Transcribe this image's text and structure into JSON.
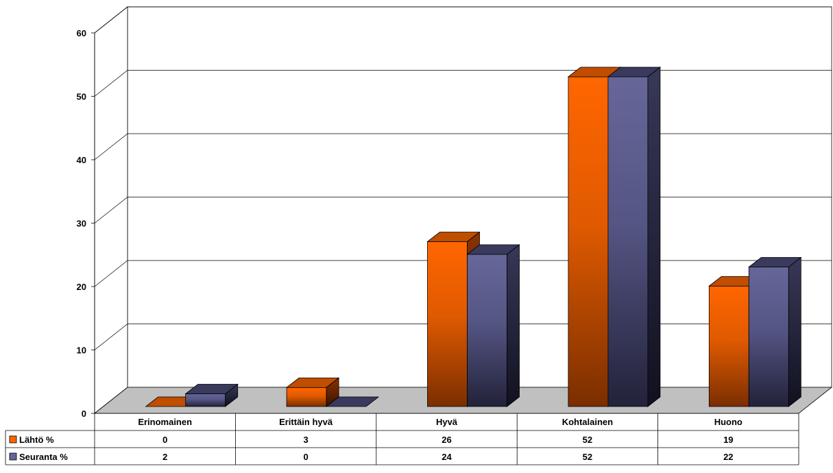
{
  "chart_data": {
    "type": "bar",
    "title": "",
    "xlabel": "",
    "ylabel": "",
    "ylim": [
      0,
      60
    ],
    "yticks": [
      0,
      10,
      20,
      30,
      40,
      50,
      60
    ],
    "grid": true,
    "legend": "data-table-left",
    "categories": [
      "Erinomainen",
      "Erittäin hyvä",
      "Hyvä",
      "Kohtalainen",
      "Huono"
    ],
    "series": [
      {
        "name": "Lähtö %",
        "values": [
          0,
          3,
          26,
          52,
          19
        ],
        "color": "#ff6600"
      },
      {
        "name": "Seuranta %",
        "values": [
          2,
          0,
          24,
          52,
          22
        ],
        "color": "#666699"
      }
    ]
  }
}
